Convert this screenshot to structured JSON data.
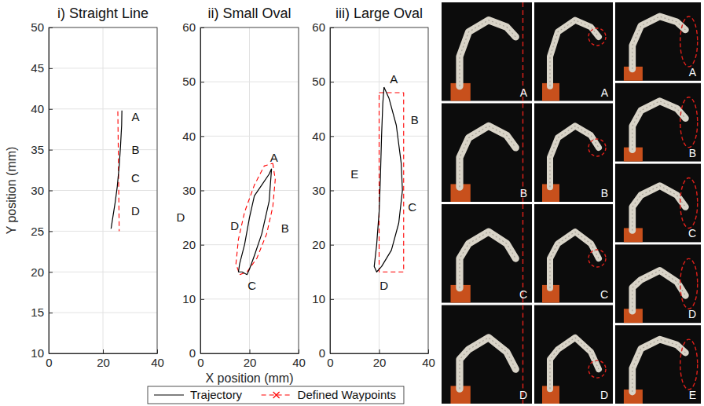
{
  "chart_data": [
    {
      "type": "line",
      "title": "i) Straight Line",
      "y_label": "Y position (mm)",
      "xlim": [
        0,
        40
      ],
      "xticks": [
        0,
        20,
        40
      ],
      "ylim": [
        10,
        50
      ],
      "yticks": [
        10,
        15,
        20,
        25,
        30,
        35,
        40,
        45,
        50
      ],
      "grid": true,
      "legend": "bottom",
      "series": [
        {
          "name": "Trajectory",
          "color": "#000000",
          "line_style": "solid",
          "x": [
            27,
            26.9,
            26.5,
            26,
            25.3,
            24.5,
            23.7,
            23
          ],
          "values": [
            39.8,
            38,
            35.5,
            33,
            30.5,
            28.5,
            26.8,
            25.3
          ]
        },
        {
          "name": "Defined Waypoints",
          "color": "#ff0000",
          "line_style": "dashed",
          "x": [
            25.5,
            26
          ],
          "values": [
            39.7,
            25
          ]
        }
      ],
      "annotations": [
        {
          "text": "A",
          "x": 32,
          "y": 39
        },
        {
          "text": "B",
          "x": 32,
          "y": 35
        },
        {
          "text": "C",
          "x": 32,
          "y": 31.5
        },
        {
          "text": "D",
          "x": 32,
          "y": 27.5
        }
      ]
    },
    {
      "type": "line",
      "title": "ii) Small Oval",
      "x_label": "X position (mm)",
      "xlim": [
        0,
        40
      ],
      "xticks": [
        0,
        20,
        40
      ],
      "ylim": [
        0,
        60
      ],
      "yticks": [
        0,
        10,
        20,
        30,
        40,
        50,
        60
      ],
      "grid": true,
      "series": [
        {
          "color": "#000000",
          "line_style": "solid",
          "x": [
            29,
            28,
            25,
            22,
            20,
            19,
            17,
            15.5,
            16,
            18,
            20,
            22,
            25,
            28,
            29
          ],
          "values": [
            34,
            28,
            22,
            18,
            15.5,
            14.5,
            15,
            15,
            16.5,
            20,
            25,
            29,
            31,
            33,
            34
          ]
        },
        {
          "color": "#ff0000",
          "line_style": "dashed",
          "x": [
            29.5,
            30.5,
            29.5,
            27,
            23,
            19,
            16,
            14.5,
            15.5,
            18,
            22,
            26,
            29.5
          ],
          "values": [
            35,
            32,
            27,
            22,
            17.5,
            15,
            14.5,
            16.5,
            21,
            26,
            31,
            34.5,
            35
          ]
        }
      ],
      "annotations": [
        {
          "text": "A",
          "x": 30,
          "y": 36
        },
        {
          "text": "B",
          "x": 34.5,
          "y": 23
        },
        {
          "text": "C",
          "x": 21,
          "y": 12.5
        },
        {
          "text": "D",
          "x": 14,
          "y": 23.5
        },
        {
          "text": "D",
          "x": -8,
          "y": 25
        }
      ]
    },
    {
      "type": "line",
      "title": "iii) Large Oval",
      "xlim": [
        0,
        40
      ],
      "xticks": [
        0,
        20,
        40
      ],
      "ylim": [
        0,
        60
      ],
      "yticks": [
        0,
        10,
        20,
        30,
        40,
        50,
        60
      ],
      "grid": true,
      "series": [
        {
          "color": "#000000",
          "line_style": "solid",
          "x": [
            22,
            24,
            27,
            29,
            29.5,
            28,
            25,
            21,
            19,
            18,
            19,
            20,
            20.5,
            21,
            21.5,
            22
          ],
          "values": [
            49,
            47,
            42,
            35,
            30,
            24,
            19,
            16,
            15,
            16,
            20,
            26,
            32,
            40,
            46,
            49
          ]
        },
        {
          "color": "#ff0000",
          "line_style": "dashed",
          "x": [
            20,
            30,
            30,
            20,
            20
          ],
          "values": [
            48,
            48,
            15,
            15,
            48
          ]
        }
      ],
      "annotations": [
        {
          "text": "A",
          "x": 26,
          "y": 50.5
        },
        {
          "text": "B",
          "x": 34.5,
          "y": 43
        },
        {
          "text": "C",
          "x": 33.5,
          "y": 27
        },
        {
          "text": "D",
          "x": 22,
          "y": 12.5
        },
        {
          "text": "E",
          "x": 10,
          "y": 33
        }
      ]
    }
  ],
  "photos": {
    "columns": [
      {
        "labels": [
          "A",
          "B",
          "C",
          "D"
        ]
      },
      {
        "labels": [
          "A",
          "B",
          "C",
          "D"
        ]
      },
      {
        "labels": [
          "A",
          "B",
          "C",
          "D",
          "E"
        ]
      }
    ]
  }
}
